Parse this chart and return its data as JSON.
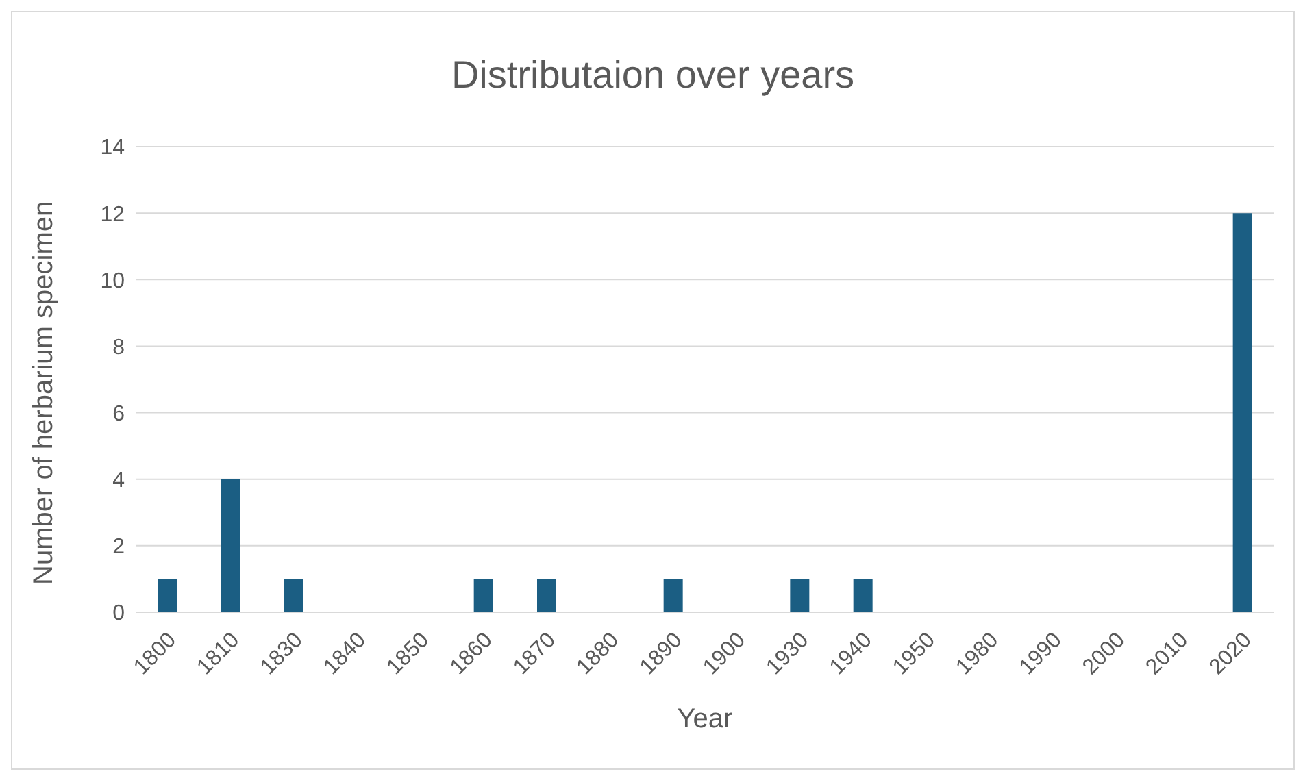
{
  "chart_data": {
    "type": "bar",
    "title": "Distributaion over years",
    "xlabel": "Year",
    "ylabel": "Number of herbarium specimen",
    "categories": [
      "1800",
      "1810",
      "1830",
      "1840",
      "1850",
      "1860",
      "1870",
      "1880",
      "1890",
      "1900",
      "1930",
      "1940",
      "1950",
      "1980",
      "1990",
      "2000",
      "2010",
      "2020"
    ],
    "values": [
      1,
      4,
      1,
      0,
      0,
      1,
      1,
      0,
      1,
      0,
      1,
      1,
      0,
      0,
      0,
      0,
      0,
      12
    ],
    "color": "#1b5e83",
    "ylim": [
      0,
      14
    ],
    "yticks": [
      0,
      2,
      4,
      6,
      8,
      10,
      12,
      14
    ],
    "grid": "y",
    "legend": false
  }
}
